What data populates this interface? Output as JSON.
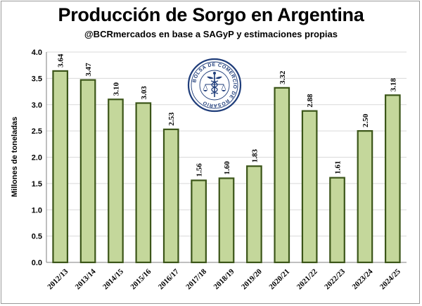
{
  "chart_data": {
    "type": "bar",
    "title": "Producción de Sorgo en Argentina",
    "subtitle": "@BCRmercados en base a SAGyP y estimaciones propias",
    "ylabel": "Millones de toneladas",
    "xlabel": "",
    "ylim": [
      0,
      4
    ],
    "yticks": [
      "0.0",
      "0.5",
      "1.0",
      "1.5",
      "2.0",
      "2.5",
      "3.0",
      "3.5",
      "4.0"
    ],
    "grid": true,
    "categories": [
      "2012/13",
      "2013/14",
      "2014/15",
      "2015/16",
      "2016/17",
      "2017/18",
      "2018/19",
      "2019/20",
      "2020/21",
      "2021/22",
      "2022/23",
      "2023/24",
      "2024/25"
    ],
    "values": [
      3.64,
      3.47,
      3.1,
      3.03,
      2.53,
      1.56,
      1.6,
      1.83,
      3.32,
      2.88,
      1.61,
      2.5,
      3.18
    ],
    "value_labels": [
      "3.64",
      "3.47",
      "3.10",
      "3.03",
      "2.53",
      "1.56",
      "1.60",
      "1.83",
      "3.32",
      "2.88",
      "1.61",
      "2.50",
      "3.18"
    ],
    "colors": {
      "bar_fill": "#c4d79b",
      "bar_stroke": "#3b5518",
      "grid": "#d9d9d9"
    }
  },
  "logo": {
    "text": "BOLSA DE COMERCIO DE ROSARIO",
    "color": "#1f3d7a"
  }
}
